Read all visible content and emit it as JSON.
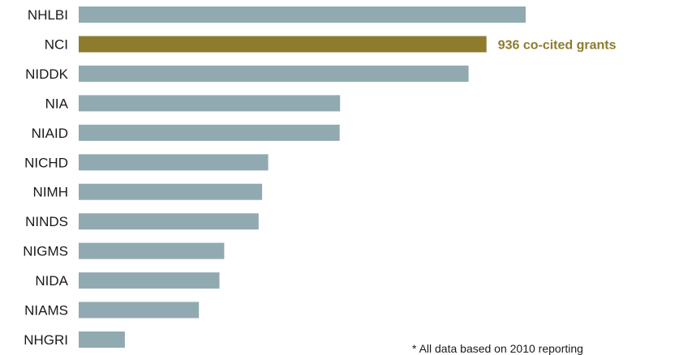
{
  "chart_data": {
    "type": "bar",
    "orientation": "horizontal",
    "categories": [
      "NHLBI",
      "NCI",
      "NIDDK",
      "NIA",
      "NIAID",
      "NICHD",
      "NIMH",
      "NINDS",
      "NIGMS",
      "NIDA",
      "NIAMS",
      "NHGRI"
    ],
    "values": [
      1026,
      936,
      895,
      600,
      599,
      435,
      421,
      413,
      334,
      323,
      276,
      106
    ],
    "highlight_category": "NCI",
    "annotation": "936 co-cited grants",
    "colors": {
      "bar": "#91aab2",
      "highlight": "#8f7b2e",
      "label": "#1a1a1a"
    },
    "xlim": [
      0,
      1026
    ],
    "axis_lines": false,
    "gridlines": false,
    "legend": false
  },
  "footnote": "* All data based on 2010 reporting"
}
